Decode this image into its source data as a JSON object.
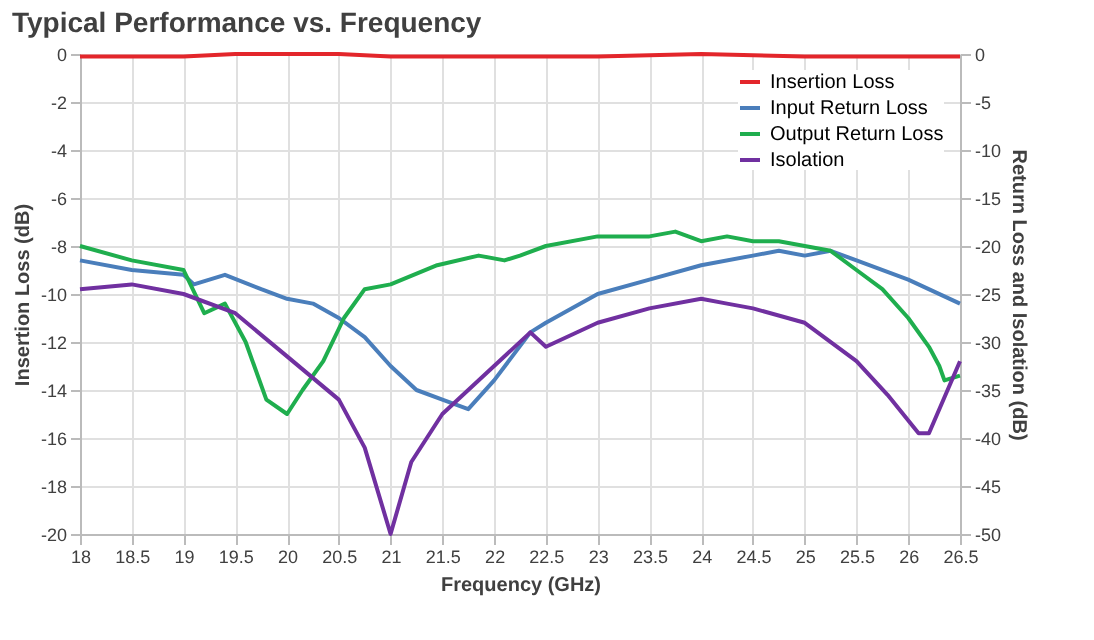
{
  "chart_data": {
    "type": "line",
    "title": "Typical Performance vs. Frequency",
    "xlabel": "Frequency (GHz)",
    "ylabel": "Insertion Loss (dB)",
    "y2label": "Return Loss and Isolation (dB)",
    "xlim": [
      18,
      26.5
    ],
    "xticks": [
      18,
      18.5,
      19,
      19.5,
      20,
      20.5,
      21,
      21.5,
      22,
      22.5,
      23,
      23.5,
      24,
      24.5,
      25,
      25.5,
      26,
      26.5
    ],
    "ylim": [
      -20,
      0
    ],
    "yticks": [
      -20,
      -18,
      -16,
      -14,
      -12,
      -10,
      -8,
      -6,
      -4,
      -2,
      0
    ],
    "y2lim": [
      -50,
      0
    ],
    "y2ticks": [
      -50,
      -45,
      -40,
      -35,
      -30,
      -25,
      -20,
      -15,
      -10,
      -5,
      0
    ],
    "grid": true,
    "legend": "top right",
    "marker": "none",
    "line_style": "solid",
    "series": [
      {
        "name": "Insertion Loss",
        "color": "#e3262b",
        "axis": "y",
        "x": [
          18,
          18.5,
          19,
          19.5,
          20,
          20.5,
          21,
          21.5,
          22,
          23,
          24,
          25,
          26,
          26.5
        ],
        "values": [
          -0.1,
          -0.1,
          -0.1,
          0,
          0,
          0,
          -0.1,
          -0.1,
          -0.1,
          -0.1,
          0,
          -0.1,
          -0.1,
          -0.1
        ]
      },
      {
        "name": "Input Return Loss",
        "color": "#4a7ebb",
        "axis": "y2",
        "x": [
          18,
          18.5,
          19,
          19.1,
          19.4,
          19.75,
          20,
          20.25,
          20.5,
          20.75,
          21,
          21.25,
          21.5,
          21.75,
          22,
          22.35,
          22.5,
          23,
          23.5,
          24,
          24.5,
          24.75,
          25,
          25.25,
          25.5,
          26,
          26.5
        ],
        "values": [
          -21.5,
          -22.5,
          -23,
          -24,
          -23,
          -24.5,
          -25.5,
          -26,
          -27.5,
          -29.5,
          -32.5,
          -35,
          -36,
          -37,
          -34,
          -29,
          -28,
          -25,
          -23.5,
          -22,
          -21,
          -20.5,
          -21,
          -20.5,
          -21.5,
          -23.5,
          -26
        ]
      },
      {
        "name": "Output Return Loss",
        "color": "#1fae4e",
        "axis": "y2",
        "x": [
          18,
          18.5,
          19,
          19.2,
          19.4,
          19.6,
          19.8,
          20,
          20.15,
          20.35,
          20.55,
          20.75,
          21,
          21.45,
          21.85,
          22.1,
          22.25,
          22.5,
          23,
          23.5,
          23.75,
          24,
          24.25,
          24.5,
          24.75,
          25,
          25.25,
          25.5,
          25.75,
          26,
          26.2,
          26.3,
          26.35,
          26.5
        ],
        "values": [
          -20,
          -21.5,
          -22.5,
          -27,
          -26,
          -30,
          -36,
          -37.5,
          -35,
          -32,
          -27.5,
          -24.5,
          -24,
          -22,
          -21,
          -21.5,
          -21,
          -20,
          -19,
          -19,
          -18.5,
          -19.5,
          -19,
          -19.5,
          -19.5,
          -20,
          -20.5,
          -22.5,
          -24.5,
          -27.5,
          -30.5,
          -32.5,
          -34,
          -33.5
        ]
      },
      {
        "name": "Isolation",
        "color": "#7030a0",
        "axis": "y2",
        "x": [
          18,
          18.5,
          19,
          19.5,
          20,
          20.5,
          20.75,
          21,
          21.2,
          21.5,
          22,
          22.35,
          22.5,
          23,
          23.5,
          24,
          24.25,
          24.5,
          25,
          25.5,
          25.8,
          26.1,
          26.2,
          26.5
        ],
        "values": [
          -24.5,
          -24,
          -25,
          -27,
          -31.5,
          -36,
          -41,
          -50,
          -42.5,
          -37.5,
          -32.5,
          -29,
          -30.5,
          -28,
          -26.5,
          -25.5,
          -26,
          -26.5,
          -28,
          -32,
          -35.5,
          -39.5,
          -39.5,
          -32
        ]
      }
    ]
  }
}
